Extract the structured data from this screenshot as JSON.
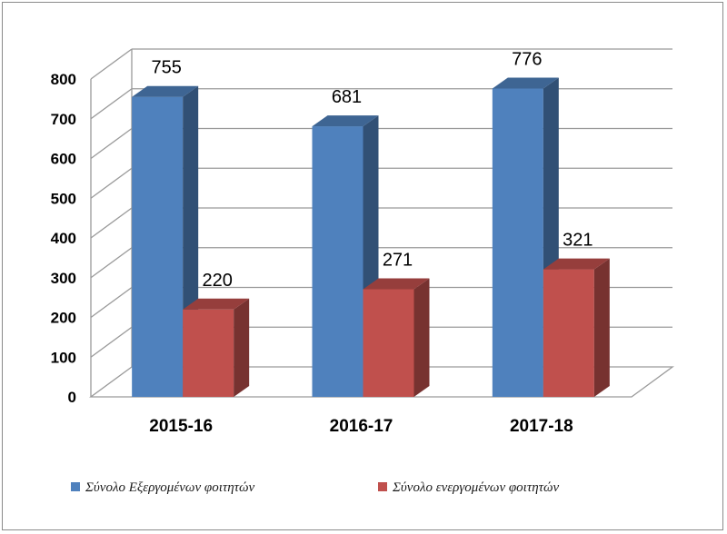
{
  "chart_data": {
    "type": "bar",
    "categories": [
      "2015-16",
      "2016-17",
      "2017-18"
    ],
    "series": [
      {
        "name": "Σύνολο Εξεργομένων φοιτητών",
        "values": [
          755,
          681,
          776
        ],
        "color": "#4f81bd"
      },
      {
        "name": "Σύνολο ενεργομένων φοιτητών",
        "values": [
          220,
          271,
          321
        ],
        "color": "#c0504d"
      }
    ],
    "ylim": [
      0,
      800
    ],
    "yticks": [
      0,
      100,
      200,
      300,
      400,
      500,
      600,
      700,
      800
    ],
    "grid": true,
    "legend_position": "bottom",
    "style": "3d-column"
  }
}
